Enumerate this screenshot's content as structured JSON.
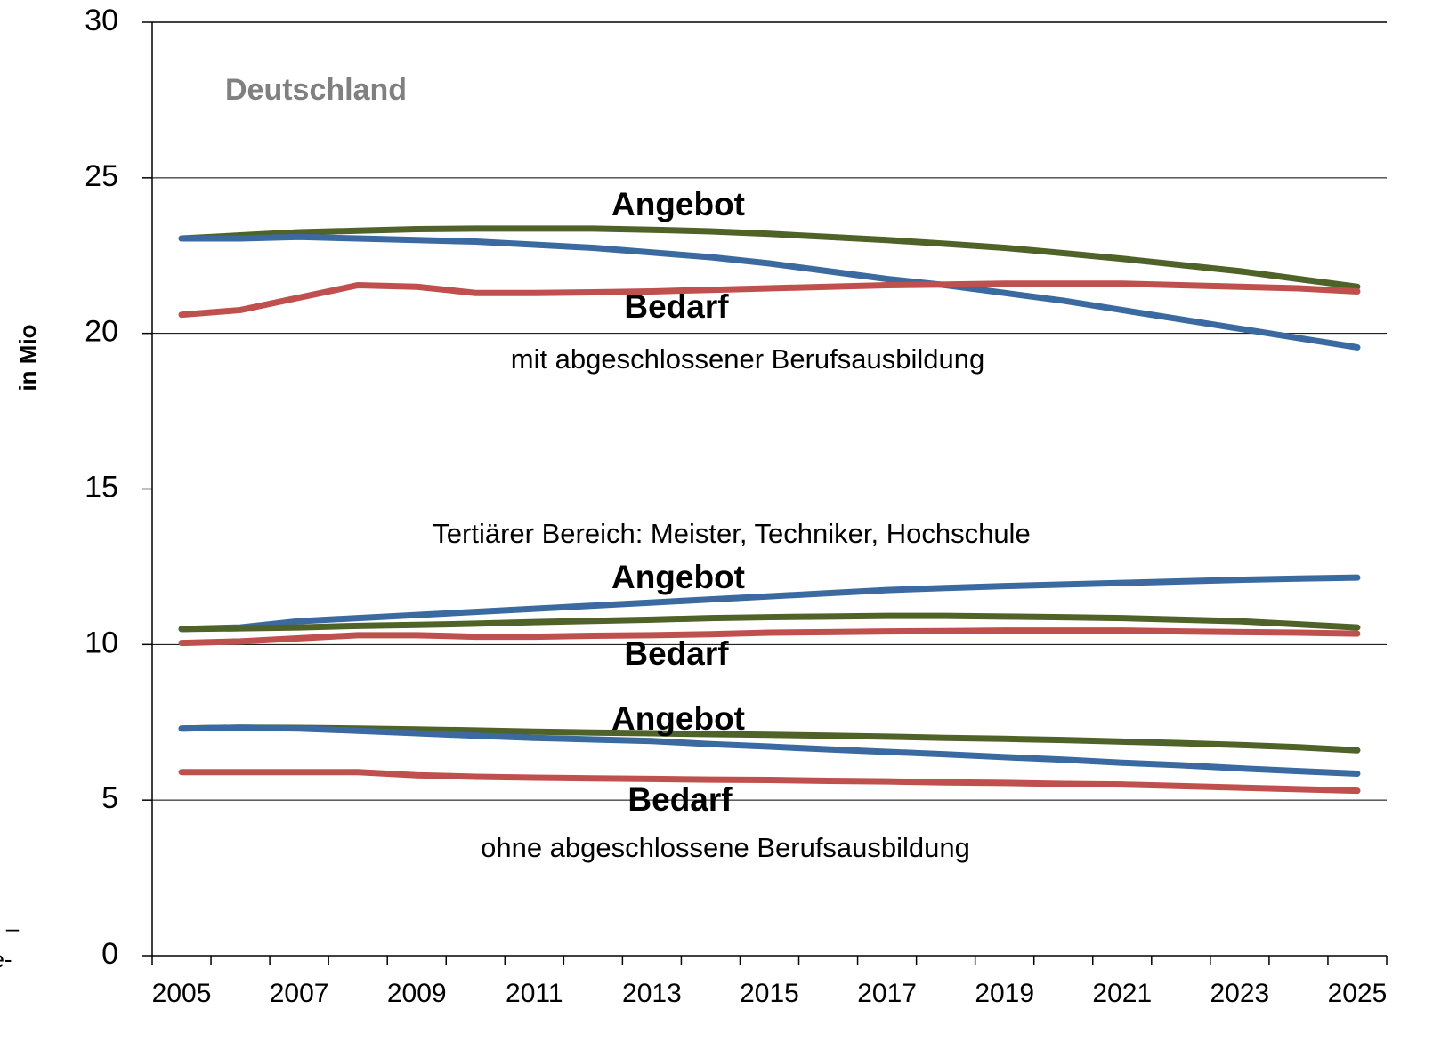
{
  "chart_data": {
    "type": "line",
    "y_label": "in Mio",
    "categories": [
      "2005",
      null,
      "2007",
      null,
      "2009",
      null,
      "2011",
      null,
      "2013",
      null,
      "2015",
      null,
      "2017",
      null,
      "2019",
      null,
      "2021",
      null,
      "2023",
      null,
      "2025"
    ],
    "series": [
      {
        "color": "#4f6228",
        "values": [
          23.05,
          23.15,
          23.25,
          23.3,
          23.35,
          23.37,
          23.37,
          23.37,
          23.33,
          23.28,
          23.2,
          23.1,
          23.0,
          22.88,
          22.75,
          22.58,
          22.4,
          22.2,
          22.0,
          21.75,
          21.5
        ]
      },
      {
        "color": "#3a6aa0",
        "values": [
          23.05,
          23.05,
          23.1,
          23.05,
          23.0,
          22.95,
          22.85,
          22.75,
          22.6,
          22.45,
          22.25,
          22.0,
          21.75,
          21.55,
          21.3,
          21.05,
          20.75,
          20.45,
          20.15,
          19.85,
          19.55
        ]
      },
      {
        "color": "#c0504d",
        "values": [
          20.6,
          20.75,
          21.15,
          21.55,
          21.5,
          21.3,
          21.3,
          21.32,
          21.35,
          21.4,
          21.45,
          21.5,
          21.55,
          21.57,
          21.6,
          21.6,
          21.6,
          21.55,
          21.5,
          21.45,
          21.35
        ]
      },
      {
        "color": "#3a6aa0",
        "values": [
          10.5,
          10.55,
          10.75,
          10.85,
          10.95,
          11.05,
          11.15,
          11.25,
          11.35,
          11.45,
          11.55,
          11.65,
          11.75,
          11.82,
          11.88,
          11.93,
          11.98,
          12.03,
          12.08,
          12.12,
          12.15
        ]
      },
      {
        "color": "#4f6228",
        "values": [
          10.5,
          10.52,
          10.55,
          10.6,
          10.63,
          10.67,
          10.72,
          10.76,
          10.8,
          10.85,
          10.88,
          10.9,
          10.92,
          10.92,
          10.9,
          10.88,
          10.85,
          10.8,
          10.75,
          10.65,
          10.55
        ]
      },
      {
        "color": "#c0504d",
        "values": [
          10.05,
          10.1,
          10.2,
          10.3,
          10.3,
          10.25,
          10.25,
          10.28,
          10.3,
          10.33,
          10.38,
          10.4,
          10.42,
          10.43,
          10.45,
          10.45,
          10.45,
          10.42,
          10.4,
          10.38,
          10.35
        ]
      },
      {
        "color": "#4f6228",
        "values": [
          7.3,
          7.33,
          7.32,
          7.3,
          7.27,
          7.24,
          7.2,
          7.17,
          7.15,
          7.12,
          7.1,
          7.07,
          7.04,
          7.0,
          6.97,
          6.93,
          6.88,
          6.83,
          6.77,
          6.7,
          6.6
        ]
      },
      {
        "color": "#3a6aa0",
        "values": [
          7.3,
          7.33,
          7.3,
          7.23,
          7.15,
          7.07,
          7.0,
          6.95,
          6.9,
          6.8,
          6.72,
          6.63,
          6.55,
          6.47,
          6.38,
          6.3,
          6.2,
          6.12,
          6.02,
          5.93,
          5.85
        ]
      },
      {
        "color": "#c0504d",
        "values": [
          5.9,
          5.9,
          5.9,
          5.9,
          5.8,
          5.75,
          5.72,
          5.7,
          5.68,
          5.66,
          5.65,
          5.62,
          5.6,
          5.57,
          5.55,
          5.52,
          5.5,
          5.45,
          5.4,
          5.35,
          5.3
        ]
      }
    ],
    "ylim": [
      0,
      30
    ],
    "yticks": [
      0,
      5,
      10,
      15,
      20,
      25,
      30
    ],
    "grid": true,
    "annotations": [
      "Deutschland",
      "Angebot",
      "Bedarf",
      "mit abgeschlossener Berufsausbildung",
      "Tertiärer Bereich: Meister, Techniker, Hochschule",
      "Angebot",
      "Bedarf",
      "Angebot",
      "Bedarf",
      "ohne abgeschlossene Berufsausbildung",
      "–",
      "e-"
    ]
  }
}
